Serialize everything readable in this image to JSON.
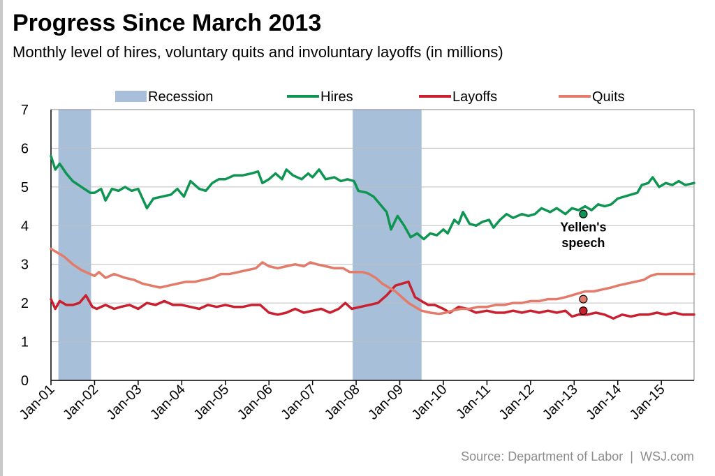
{
  "header": {
    "title": "Progress Since March 2013",
    "subtitle": "Monthly level of hires, voluntary quits and involuntary layoffs (in millions)"
  },
  "footer": {
    "source": "Source: Department of Labor",
    "brand": "WSJ.com"
  },
  "colors": {
    "hires": "#0e9552",
    "layoffs": "#c8202f",
    "quits": "#e27b6a",
    "recession": "#a7bfd8"
  },
  "chart_data": {
    "type": "line",
    "title": "Progress Since March 2013",
    "xlabel": "",
    "ylabel": "",
    "ylim": [
      0,
      7
    ],
    "yticks": [
      0,
      1,
      2,
      3,
      4,
      5,
      6,
      7
    ],
    "xlim": [
      2001.0,
      2015.75
    ],
    "xticks": [
      {
        "value": 2001,
        "label": "Jan-01"
      },
      {
        "value": 2002,
        "label": "Jan-02"
      },
      {
        "value": 2003,
        "label": "Jan-03"
      },
      {
        "value": 2004,
        "label": "Jan-04"
      },
      {
        "value": 2005,
        "label": "Jan-05"
      },
      {
        "value": 2006,
        "label": "Jan-06"
      },
      {
        "value": 2007,
        "label": "Jan-07"
      },
      {
        "value": 2008,
        "label": "Jan-08"
      },
      {
        "value": 2009,
        "label": "Jan-09"
      },
      {
        "value": 2010,
        "label": "Jan-10"
      },
      {
        "value": 2011,
        "label": "Jan-11"
      },
      {
        "value": 2012,
        "label": "Jan-12"
      },
      {
        "value": 2013,
        "label": "Jan-13"
      },
      {
        "value": 2014,
        "label": "Jan-14"
      },
      {
        "value": 2015,
        "label": "Jan-15"
      }
    ],
    "grid": true,
    "legend": {
      "position": "top",
      "items": [
        {
          "name": "Recession",
          "kind": "box",
          "color": "#a7bfd8"
        },
        {
          "name": "Hires",
          "kind": "line",
          "color": "#0e9552"
        },
        {
          "name": "Layoffs",
          "kind": "line",
          "color": "#c8202f"
        },
        {
          "name": "Quits",
          "kind": "line",
          "color": "#e27b6a"
        }
      ]
    },
    "recessions": [
      {
        "start": 2001.17,
        "end": 2001.92
      },
      {
        "start": 2007.92,
        "end": 2009.5
      }
    ],
    "series": [
      {
        "name": "Hires",
        "color": "#0e9552",
        "points": [
          [
            2001.0,
            5.8
          ],
          [
            2001.1,
            5.45
          ],
          [
            2001.2,
            5.6
          ],
          [
            2001.35,
            5.35
          ],
          [
            2001.5,
            5.15
          ],
          [
            2001.7,
            5.0
          ],
          [
            2001.9,
            4.85
          ],
          [
            2002.0,
            4.85
          ],
          [
            2002.15,
            4.95
          ],
          [
            2002.25,
            4.65
          ],
          [
            2002.4,
            4.95
          ],
          [
            2002.55,
            4.9
          ],
          [
            2002.7,
            5.0
          ],
          [
            2002.85,
            4.9
          ],
          [
            2003.0,
            4.95
          ],
          [
            2003.2,
            4.45
          ],
          [
            2003.35,
            4.7
          ],
          [
            2003.55,
            4.75
          ],
          [
            2003.75,
            4.8
          ],
          [
            2003.9,
            4.95
          ],
          [
            2004.05,
            4.75
          ],
          [
            2004.2,
            5.15
          ],
          [
            2004.4,
            4.95
          ],
          [
            2004.55,
            4.9
          ],
          [
            2004.7,
            5.1
          ],
          [
            2004.85,
            5.2
          ],
          [
            2005.0,
            5.2
          ],
          [
            2005.2,
            5.3
          ],
          [
            2005.4,
            5.3
          ],
          [
            2005.6,
            5.35
          ],
          [
            2005.75,
            5.4
          ],
          [
            2005.85,
            5.1
          ],
          [
            2006.0,
            5.2
          ],
          [
            2006.15,
            5.35
          ],
          [
            2006.3,
            5.2
          ],
          [
            2006.4,
            5.45
          ],
          [
            2006.55,
            5.3
          ],
          [
            2006.75,
            5.2
          ],
          [
            2006.9,
            5.35
          ],
          [
            2007.0,
            5.25
          ],
          [
            2007.15,
            5.45
          ],
          [
            2007.3,
            5.2
          ],
          [
            2007.5,
            5.25
          ],
          [
            2007.65,
            5.15
          ],
          [
            2007.8,
            5.2
          ],
          [
            2007.95,
            5.15
          ],
          [
            2008.05,
            4.9
          ],
          [
            2008.25,
            4.85
          ],
          [
            2008.4,
            4.75
          ],
          [
            2008.55,
            4.55
          ],
          [
            2008.7,
            4.35
          ],
          [
            2008.8,
            3.9
          ],
          [
            2008.95,
            4.25
          ],
          [
            2009.1,
            4.0
          ],
          [
            2009.25,
            3.7
          ],
          [
            2009.4,
            3.8
          ],
          [
            2009.55,
            3.65
          ],
          [
            2009.7,
            3.8
          ],
          [
            2009.85,
            3.75
          ],
          [
            2010.0,
            3.9
          ],
          [
            2010.1,
            3.8
          ],
          [
            2010.25,
            4.15
          ],
          [
            2010.35,
            4.05
          ],
          [
            2010.45,
            4.35
          ],
          [
            2010.6,
            4.05
          ],
          [
            2010.75,
            4.0
          ],
          [
            2010.9,
            4.1
          ],
          [
            2011.05,
            4.15
          ],
          [
            2011.15,
            3.95
          ],
          [
            2011.3,
            4.15
          ],
          [
            2011.45,
            4.3
          ],
          [
            2011.6,
            4.2
          ],
          [
            2011.8,
            4.3
          ],
          [
            2011.95,
            4.25
          ],
          [
            2012.1,
            4.3
          ],
          [
            2012.25,
            4.45
          ],
          [
            2012.45,
            4.35
          ],
          [
            2012.6,
            4.45
          ],
          [
            2012.8,
            4.3
          ],
          [
            2012.95,
            4.45
          ],
          [
            2013.1,
            4.4
          ],
          [
            2013.25,
            4.5
          ],
          [
            2013.4,
            4.4
          ],
          [
            2013.55,
            4.55
          ],
          [
            2013.7,
            4.5
          ],
          [
            2013.85,
            4.55
          ],
          [
            2014.0,
            4.7
          ],
          [
            2014.15,
            4.75
          ],
          [
            2014.3,
            4.8
          ],
          [
            2014.45,
            4.85
          ],
          [
            2014.55,
            5.05
          ],
          [
            2014.7,
            5.1
          ],
          [
            2014.8,
            5.25
          ],
          [
            2014.95,
            5.0
          ],
          [
            2015.1,
            5.1
          ],
          [
            2015.25,
            5.05
          ],
          [
            2015.4,
            5.15
          ],
          [
            2015.55,
            5.05
          ],
          [
            2015.75,
            5.1
          ]
        ]
      },
      {
        "name": "Layoffs",
        "color": "#c8202f",
        "points": [
          [
            2001.0,
            2.1
          ],
          [
            2001.1,
            1.85
          ],
          [
            2001.2,
            2.05
          ],
          [
            2001.35,
            1.95
          ],
          [
            2001.5,
            1.95
          ],
          [
            2001.65,
            2.0
          ],
          [
            2001.8,
            2.2
          ],
          [
            2001.95,
            1.9
          ],
          [
            2002.05,
            1.85
          ],
          [
            2002.25,
            1.95
          ],
          [
            2002.45,
            1.85
          ],
          [
            2002.6,
            1.9
          ],
          [
            2002.8,
            1.95
          ],
          [
            2003.0,
            1.85
          ],
          [
            2003.2,
            2.0
          ],
          [
            2003.4,
            1.95
          ],
          [
            2003.6,
            2.05
          ],
          [
            2003.8,
            1.95
          ],
          [
            2004.0,
            1.95
          ],
          [
            2004.2,
            1.9
          ],
          [
            2004.4,
            1.85
          ],
          [
            2004.6,
            1.95
          ],
          [
            2004.8,
            1.9
          ],
          [
            2005.0,
            1.95
          ],
          [
            2005.2,
            1.9
          ],
          [
            2005.4,
            1.9
          ],
          [
            2005.6,
            1.95
          ],
          [
            2005.8,
            1.95
          ],
          [
            2006.0,
            1.75
          ],
          [
            2006.2,
            1.7
          ],
          [
            2006.4,
            1.75
          ],
          [
            2006.6,
            1.85
          ],
          [
            2006.8,
            1.75
          ],
          [
            2007.0,
            1.8
          ],
          [
            2007.2,
            1.85
          ],
          [
            2007.4,
            1.75
          ],
          [
            2007.6,
            1.85
          ],
          [
            2007.75,
            2.0
          ],
          [
            2007.9,
            1.85
          ],
          [
            2008.1,
            1.9
          ],
          [
            2008.3,
            1.95
          ],
          [
            2008.5,
            2.0
          ],
          [
            2008.7,
            2.2
          ],
          [
            2008.9,
            2.45
          ],
          [
            2009.05,
            2.5
          ],
          [
            2009.2,
            2.55
          ],
          [
            2009.35,
            2.15
          ],
          [
            2009.5,
            2.05
          ],
          [
            2009.65,
            1.95
          ],
          [
            2009.8,
            1.95
          ],
          [
            2010.0,
            1.85
          ],
          [
            2010.15,
            1.75
          ],
          [
            2010.35,
            1.9
          ],
          [
            2010.55,
            1.85
          ],
          [
            2010.75,
            1.75
          ],
          [
            2011.0,
            1.8
          ],
          [
            2011.2,
            1.75
          ],
          [
            2011.4,
            1.75
          ],
          [
            2011.6,
            1.8
          ],
          [
            2011.8,
            1.75
          ],
          [
            2012.0,
            1.8
          ],
          [
            2012.2,
            1.75
          ],
          [
            2012.4,
            1.8
          ],
          [
            2012.6,
            1.75
          ],
          [
            2012.8,
            1.8
          ],
          [
            2012.95,
            1.65
          ],
          [
            2013.1,
            1.7
          ],
          [
            2013.3,
            1.7
          ],
          [
            2013.5,
            1.75
          ],
          [
            2013.7,
            1.7
          ],
          [
            2013.9,
            1.6
          ],
          [
            2014.1,
            1.7
          ],
          [
            2014.3,
            1.65
          ],
          [
            2014.5,
            1.7
          ],
          [
            2014.7,
            1.7
          ],
          [
            2014.9,
            1.75
          ],
          [
            2015.1,
            1.7
          ],
          [
            2015.3,
            1.75
          ],
          [
            2015.5,
            1.7
          ],
          [
            2015.75,
            1.7
          ]
        ]
      },
      {
        "name": "Quits",
        "color": "#e27b6a",
        "points": [
          [
            2001.0,
            3.4
          ],
          [
            2001.15,
            3.3
          ],
          [
            2001.3,
            3.2
          ],
          [
            2001.5,
            3.0
          ],
          [
            2001.7,
            2.85
          ],
          [
            2001.9,
            2.75
          ],
          [
            2002.0,
            2.7
          ],
          [
            2002.1,
            2.8
          ],
          [
            2002.25,
            2.65
          ],
          [
            2002.45,
            2.75
          ],
          [
            2002.7,
            2.65
          ],
          [
            2002.9,
            2.6
          ],
          [
            2003.1,
            2.5
          ],
          [
            2003.3,
            2.45
          ],
          [
            2003.5,
            2.4
          ],
          [
            2003.7,
            2.45
          ],
          [
            2003.9,
            2.5
          ],
          [
            2004.1,
            2.55
          ],
          [
            2004.3,
            2.55
          ],
          [
            2004.5,
            2.6
          ],
          [
            2004.7,
            2.65
          ],
          [
            2004.9,
            2.75
          ],
          [
            2005.1,
            2.75
          ],
          [
            2005.3,
            2.8
          ],
          [
            2005.5,
            2.85
          ],
          [
            2005.7,
            2.9
          ],
          [
            2005.85,
            3.05
          ],
          [
            2006.0,
            2.95
          ],
          [
            2006.2,
            2.9
          ],
          [
            2006.4,
            2.95
          ],
          [
            2006.6,
            3.0
          ],
          [
            2006.8,
            2.95
          ],
          [
            2006.95,
            3.05
          ],
          [
            2007.1,
            3.0
          ],
          [
            2007.3,
            2.95
          ],
          [
            2007.5,
            2.9
          ],
          [
            2007.7,
            2.9
          ],
          [
            2007.85,
            2.8
          ],
          [
            2008.0,
            2.8
          ],
          [
            2008.15,
            2.8
          ],
          [
            2008.3,
            2.75
          ],
          [
            2008.45,
            2.65
          ],
          [
            2008.6,
            2.5
          ],
          [
            2008.75,
            2.4
          ],
          [
            2008.9,
            2.3
          ],
          [
            2009.05,
            2.15
          ],
          [
            2009.2,
            2.0
          ],
          [
            2009.35,
            1.9
          ],
          [
            2009.5,
            1.8
          ],
          [
            2009.7,
            1.75
          ],
          [
            2009.9,
            1.72
          ],
          [
            2010.05,
            1.75
          ],
          [
            2010.2,
            1.8
          ],
          [
            2010.4,
            1.85
          ],
          [
            2010.6,
            1.85
          ],
          [
            2010.8,
            1.9
          ],
          [
            2011.0,
            1.9
          ],
          [
            2011.2,
            1.95
          ],
          [
            2011.4,
            1.95
          ],
          [
            2011.6,
            2.0
          ],
          [
            2011.8,
            2.0
          ],
          [
            2012.0,
            2.05
          ],
          [
            2012.2,
            2.05
          ],
          [
            2012.4,
            2.1
          ],
          [
            2012.6,
            2.1
          ],
          [
            2012.8,
            2.15
          ],
          [
            2012.95,
            2.2
          ],
          [
            2013.1,
            2.25
          ],
          [
            2013.25,
            2.3
          ],
          [
            2013.45,
            2.3
          ],
          [
            2013.65,
            2.35
          ],
          [
            2013.85,
            2.4
          ],
          [
            2014.0,
            2.45
          ],
          [
            2014.2,
            2.5
          ],
          [
            2014.4,
            2.55
          ],
          [
            2014.6,
            2.6
          ],
          [
            2014.75,
            2.7
          ],
          [
            2014.9,
            2.75
          ],
          [
            2015.1,
            2.75
          ],
          [
            2015.3,
            2.75
          ],
          [
            2015.5,
            2.75
          ],
          [
            2015.75,
            2.75
          ]
        ]
      }
    ],
    "markers": [
      {
        "series": "Hires",
        "x": 2013.21,
        "y": 4.3
      },
      {
        "series": "Quits",
        "x": 2013.21,
        "y": 2.1
      },
      {
        "series": "Layoffs",
        "x": 2013.21,
        "y": 1.8
      }
    ],
    "annotations": [
      {
        "text": "Yellen's",
        "x": 2013.21,
        "y": 3.85
      },
      {
        "text": "speech",
        "x": 2013.21,
        "y": 3.45
      }
    ]
  }
}
